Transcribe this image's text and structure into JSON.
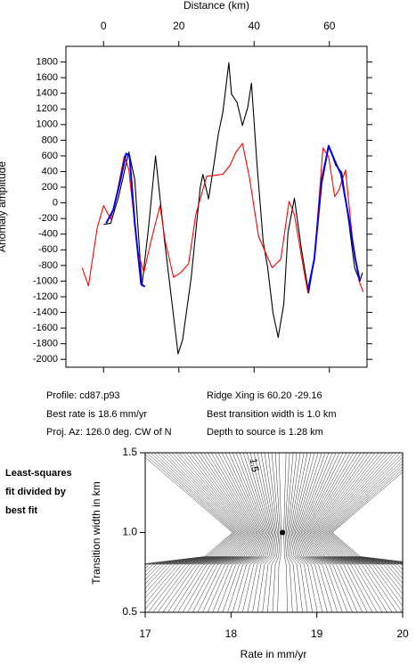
{
  "chart_data": [
    {
      "type": "line",
      "xlabel": "Distance (km)",
      "ylabel": "Anomaly amplitude",
      "xlim": [
        -10,
        70
      ],
      "xticks": [
        0,
        20,
        40,
        60
      ],
      "ylim": [
        -2100,
        2000
      ],
      "yticks": [
        -2000,
        -1800,
        -1600,
        -1400,
        -1200,
        -1000,
        -800,
        -600,
        -400,
        -200,
        0,
        200,
        400,
        600,
        800,
        1000,
        1200,
        1400,
        1600,
        1800
      ],
      "series": [
        {
          "color": "#000000",
          "x": [
            0,
            1.9,
            4,
            6.7,
            8.3,
            10.2,
            12,
            13.8,
            16.2,
            19.8,
            21,
            23.3,
            25.7,
            26.4,
            27.9,
            29.3,
            30.5,
            31.7,
            33.3,
            34,
            35.5,
            36.9,
            38.3,
            39.3,
            40.7,
            42.4,
            43.6,
            45,
            46.4,
            47.9,
            49.0,
            50.7,
            52.6,
            54.5,
            56,
            57.9,
            59.8,
            61.7,
            63.3,
            65.2,
            66.7,
            68.1,
            68.8
          ],
          "values": [
            -275,
            -260,
            80,
            650,
            300,
            -1060,
            -300,
            600,
            -480,
            -1930,
            -1750,
            -950,
            200,
            365,
            50,
            480,
            880,
            1160,
            1790,
            1390,
            1280,
            990,
            1220,
            1530,
            540,
            -490,
            -830,
            -1400,
            -1720,
            -1290,
            -380,
            60,
            -600,
            -1150,
            -720,
            310,
            730,
            480,
            390,
            -260,
            -830,
            -1000,
            -890
          ]
        },
        {
          "color": "#ff0000",
          "x": [
            -5.7,
            -4,
            -1.7,
            0,
            1.9,
            3.6,
            5.5,
            6.7,
            9,
            10.7,
            12.6,
            15,
            16.4,
            18.6,
            20.5,
            22.6,
            24.5,
            27.4,
            31.7,
            33.6,
            35.2,
            36.9,
            38.8,
            41.2,
            44.8,
            47.1,
            49.3,
            50.7,
            53.1,
            54.3,
            56,
            58.3,
            59.8,
            61.4,
            62.6,
            64.3,
            66.2,
            67.9,
            69
          ],
          "values": [
            -830,
            -1060,
            -320,
            -35,
            -210,
            140,
            600,
            430,
            -600,
            -890,
            -490,
            -35,
            -490,
            -950,
            -890,
            -780,
            -150,
            340,
            365,
            480,
            650,
            760,
            310,
            -430,
            -830,
            -720,
            20,
            -150,
            -830,
            -1150,
            -720,
            700,
            590,
            80,
            170,
            420,
            -490,
            -1000,
            -1140
          ]
        },
        {
          "color": "#0000ff",
          "x": [
            0.7,
            2.6,
            4.3,
            6,
            6.9,
            8.3,
            10,
            11,
            null,
            54.3,
            56,
            57.9,
            59.8,
            61.4,
            63.1,
            65,
            66.9,
            68.1
          ],
          "values": [
            -260,
            -90,
            250,
            630,
            600,
            -260,
            -1040,
            -1070,
            null,
            -1120,
            -720,
            250,
            730,
            540,
            365,
            -150,
            -720,
            -1000
          ]
        }
      ]
    },
    {
      "type": "contour",
      "xlabel": "Rate in mm/yr",
      "ylabel": "Transition width in km",
      "xlim": [
        17,
        20
      ],
      "xticks": [
        17,
        18,
        19,
        20
      ],
      "ylim": [
        0.5,
        1.5
      ],
      "yticks": [
        0.5,
        {
          "value": 1.0,
          "label": "1.0"
        },
        1.5
      ],
      "contour_label": "1.5",
      "best_point": {
        "x": 18.6,
        "y": 1.0
      },
      "note": [
        "Least-squares",
        "fit divided by",
        "best fit"
      ]
    }
  ],
  "info": {
    "left": [
      "Profile: cd87.p93",
      "Best rate is 18.6 mm/yr",
      "Proj. Az: 126.0 deg. CW of N"
    ],
    "right": [
      "Ridge Xing is 60.20 -29.16",
      "Best transition width is 1.0 km",
      "Depth to source is   1.28 km"
    ]
  }
}
